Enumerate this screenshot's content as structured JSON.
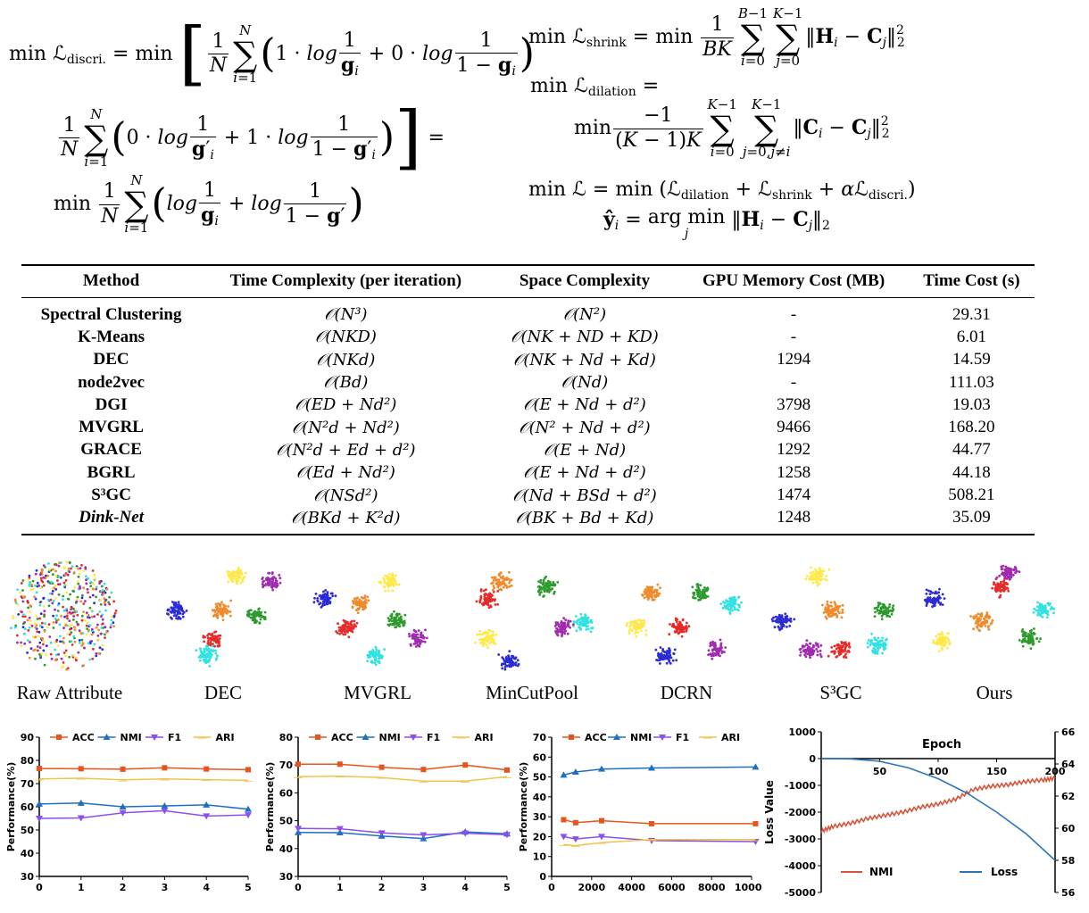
{
  "equations": {
    "discri_lhs": "min ℒ",
    "discri_sub": "discri.",
    "shrink_lhs": "min ℒ",
    "shrink_sub": "shrink",
    "dilation_lhs": "min ℒ",
    "dilation_sub": "dilation",
    "total_lhs": "min ℒ = min (ℒ",
    "predict": "ŷ",
    "argmin": "arg min"
  },
  "table": {
    "headers": [
      "Method",
      "Time Complexity (per iteration)",
      "Space Complexity",
      "GPU Memory Cost (MB)",
      "Time Cost (s)"
    ],
    "rows": [
      {
        "method": "Spectral Clustering",
        "time": "𝒪(N³)",
        "space": "𝒪(N²)",
        "gpu": "-",
        "cost": "29.31"
      },
      {
        "method": "K-Means",
        "time": "𝒪(NKD)",
        "space": "𝒪(NK + ND + KD)",
        "gpu": "-",
        "cost": "6.01"
      },
      {
        "method": "DEC",
        "time": "𝒪(NKd)",
        "space": "𝒪(NK + Nd + Kd)",
        "gpu": "1294",
        "cost": "14.59"
      },
      {
        "method": "node2vec",
        "time": "𝒪(Bd)",
        "space": "𝒪(Nd)",
        "gpu": "-",
        "cost": "111.03"
      },
      {
        "method": "DGI",
        "time": "𝒪(ED + Nd²)",
        "space": "𝒪(E + Nd + d²)",
        "gpu": "3798",
        "cost": "19.03"
      },
      {
        "method": "MVGRL",
        "time": "𝒪(N²d + Nd²)",
        "space": "𝒪(N² + Nd + d²)",
        "gpu": "9466",
        "cost": "168.20"
      },
      {
        "method": "GRACE",
        "time": "𝒪(N²d + Ed + d²)",
        "space": "𝒪(E + Nd)",
        "gpu": "1292",
        "cost": "44.77"
      },
      {
        "method": "BGRL",
        "time": "𝒪(Ed + Nd²)",
        "space": "𝒪(E + Nd + d²)",
        "gpu": "1258",
        "cost": "44.18"
      },
      {
        "method": "S³GC",
        "time": "𝒪(NSd²)",
        "space": "𝒪(Nd + BSd + d²)",
        "gpu": "1474",
        "cost": "508.21"
      },
      {
        "method": "Dink-Net",
        "time": "𝒪(BKd + K²d)",
        "space": "𝒪(BK + Bd + Kd)",
        "gpu": "1248",
        "cost": "35.09"
      }
    ]
  },
  "tsne_captions": [
    "Raw Attribute",
    "DEC",
    "MVGRL",
    "MinCutPool",
    "DCRN",
    "S³GC",
    "Ours"
  ],
  "colors": {
    "acc": "#e8531e",
    "nmi": "#1f6fc2",
    "f1": "#8a4ff0",
    "ari": "#f2c24a",
    "loss": "#2b76b8",
    "nmi_curve": "#d9533a"
  },
  "chart_data": [
    {
      "type": "line",
      "x": [
        0,
        1,
        2,
        3,
        4,
        5
      ],
      "ylabel": "Performance(%)",
      "ylim": [
        30,
        90
      ],
      "yticks": [
        30,
        40,
        50,
        60,
        70,
        80,
        90
      ],
      "xticks": [
        0,
        1,
        2,
        3,
        4,
        5
      ],
      "legend": "top",
      "series": [
        {
          "name": "ACC",
          "values": [
            76.5,
            76.4,
            76.2,
            76.8,
            76.3,
            76.0
          ]
        },
        {
          "name": "NMI",
          "values": [
            61.2,
            61.6,
            60.0,
            60.4,
            60.8,
            59.0
          ]
        },
        {
          "name": "F1",
          "values": [
            55.0,
            55.2,
            57.4,
            58.3,
            56.0,
            56.5
          ]
        },
        {
          "name": "ARI",
          "values": [
            72.0,
            72.3,
            71.6,
            72.0,
            71.7,
            71.4
          ]
        }
      ]
    },
    {
      "type": "line",
      "x": [
        0,
        1,
        2,
        3,
        4,
        5
      ],
      "ylabel": "Performance(%)",
      "ylim": [
        30,
        80
      ],
      "yticks": [
        30,
        40,
        50,
        60,
        70,
        80
      ],
      "xticks": [
        0,
        1,
        2,
        3,
        4,
        5
      ],
      "legend": "top",
      "series": [
        {
          "name": "ACC",
          "values": [
            70.3,
            70.3,
            69.2,
            68.4,
            70.0,
            68.2
          ]
        },
        {
          "name": "NMI",
          "values": [
            45.8,
            45.7,
            44.5,
            43.6,
            46.0,
            45.3
          ]
        },
        {
          "name": "F1",
          "values": [
            47.2,
            47.1,
            45.6,
            44.9,
            45.5,
            45.0
          ]
        },
        {
          "name": "ARI",
          "values": [
            65.8,
            66.0,
            65.5,
            64.2,
            64.2,
            65.8
          ]
        }
      ]
    },
    {
      "type": "line",
      "x": [
        600,
        1200,
        2500,
        5000,
        10200
      ],
      "ylabel": "Performance(%)",
      "ylim": [
        0,
        70
      ],
      "yticks": [
        0,
        10,
        20,
        30,
        40,
        50,
        60,
        70
      ],
      "xticks": [
        0,
        2000,
        4000,
        6000,
        8000,
        10000
      ],
      "legend": "top",
      "series": [
        {
          "name": "ACC",
          "values": [
            28.5,
            27.0,
            28.0,
            26.5,
            26.5
          ]
        },
        {
          "name": "NMI",
          "values": [
            51.0,
            52.5,
            54.0,
            54.5,
            55.0
          ]
        },
        {
          "name": "F1",
          "values": [
            20.0,
            18.8,
            20.0,
            18.0,
            17.5
          ]
        },
        {
          "name": "ARI",
          "values": [
            16.0,
            15.5,
            17.0,
            18.5,
            18.5
          ]
        }
      ]
    },
    {
      "type": "line",
      "xlabel": "Epoch",
      "ylabel": "Loss Value",
      "xlim": [
        0,
        200
      ],
      "xticks": [
        50,
        100,
        150,
        200
      ],
      "ylim": [
        -5000,
        1000
      ],
      "yticks": [
        -5000,
        -4000,
        -3000,
        -2000,
        -1000,
        0,
        1000
      ],
      "y2lim": [
        56,
        66
      ],
      "y2ticks": [
        56,
        58,
        60,
        62,
        64,
        66
      ],
      "legend": "bottom",
      "series": [
        {
          "name": "NMI",
          "axis": "right",
          "x": [
            0,
            10,
            25,
            40,
            55,
            70,
            85,
            100,
            115,
            130,
            145,
            160,
            175,
            190,
            200
          ],
          "values": [
            59.8,
            60.1,
            60.3,
            60.6,
            60.8,
            61.0,
            61.3,
            61.5,
            61.8,
            62.4,
            62.6,
            62.7,
            62.9,
            63.0,
            63.1
          ]
        },
        {
          "name": "Loss",
          "axis": "left",
          "x": [
            0,
            25,
            50,
            75,
            100,
            125,
            150,
            175,
            200
          ],
          "values": [
            0,
            -10,
            -100,
            -350,
            -750,
            -1300,
            -2000,
            -2800,
            -3800
          ]
        }
      ]
    }
  ]
}
